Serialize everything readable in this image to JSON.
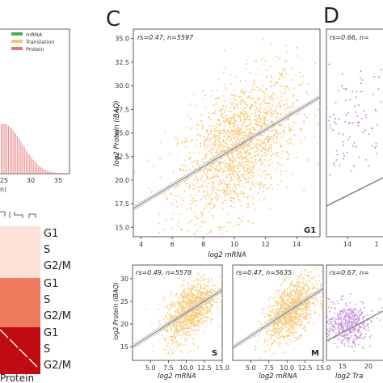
{
  "colors": {
    "mrna": "#4caf50",
    "translation": "#f6c26b",
    "protein": "#e57373",
    "scatter_orange": "#f7c97a",
    "scatter_purple": "#c48fd6",
    "fit_line": "#8a8a8a",
    "heat_light": "#fde0d6",
    "heat_mid": "#f07a5e",
    "heat_dark": "#c00c10"
  },
  "panel_b": {
    "legend": [
      "mRNA",
      "Translation",
      "Protein"
    ],
    "x_ticks": [
      "25",
      "30",
      "35"
    ],
    "x_label_fragment": "n)"
  },
  "panel_heatmap": {
    "row_labels": [
      "G1",
      "S",
      "G2/M",
      "G1",
      "S",
      "G2/M",
      "G1",
      "S",
      "G2/M"
    ],
    "x_label": "Protein"
  },
  "panel_c": {
    "letter": "C",
    "main": {
      "stat": "rs=0.47, n=5597",
      "corner": "G1",
      "x_ticks": [
        "4",
        "6",
        "8",
        "10",
        "12",
        "14"
      ],
      "y_ticks": [
        "15.0",
        "17.5",
        "20.0",
        "22.5",
        "25.0",
        "27.5",
        "30.0",
        "32.5",
        "35.0"
      ],
      "xlabel": "log2 mRNA",
      "ylabel": "log2 Protein (iBAQ)"
    },
    "sub_s": {
      "stat": "rs=0.49, n=5578",
      "corner": "S",
      "x_ticks": [
        "5.0",
        "7.5",
        "10.0",
        "12.5",
        "15.0"
      ],
      "y_ticks": [
        "15",
        "20",
        "25",
        "30"
      ],
      "xlabel": "log2 mRNA",
      "ylabel": "log2 Protein (iBAQ)"
    },
    "sub_m": {
      "stat": "rs=0.47, n=5635",
      "corner": "M",
      "x_ticks": [
        "5.0",
        "7.5",
        "10.0",
        "12.5",
        "15.0"
      ],
      "xlabel": "log2 mRNA"
    }
  },
  "panel_d": {
    "letter": "D",
    "top_stat": "rs=0.66, n=",
    "top_x_ticks": [
      "14",
      "1"
    ],
    "bottom_stat": "rs=0.67, n=",
    "bottom_x_ticks": [
      "15",
      "20"
    ],
    "bottom_xlabel": "log2 Tra"
  },
  "chart_data": [
    {
      "type": "scatter",
      "title": "G1",
      "xlabel": "log2 mRNA",
      "ylabel": "log2 Protein (iBAQ)",
      "xlim": [
        3.5,
        15.5
      ],
      "ylim": [
        14,
        36
      ],
      "n": 5597,
      "spearman_rs": 0.47,
      "point_cloud": {
        "center": [
          10.2,
          23.4
        ],
        "sd": [
          1.9,
          3.4
        ]
      },
      "fit_line": {
        "x": [
          3.5,
          15.5
        ],
        "y": [
          17.0,
          28.8
        ]
      }
    },
    {
      "type": "scatter",
      "title": "S",
      "xlabel": "log2 mRNA",
      "ylabel": "log2 Protein (iBAQ)",
      "xlim": [
        2.5,
        15
      ],
      "ylim": [
        12,
        33
      ],
      "n": 5578,
      "spearman_rs": 0.49,
      "point_cloud": {
        "center": [
          10.5,
          23.0
        ],
        "sd": [
          1.8,
          3.0
        ]
      },
      "fit_line": {
        "x": [
          2.5,
          15
        ],
        "y": [
          15.0,
          27.5
        ]
      }
    },
    {
      "type": "scatter",
      "title": "M",
      "xlabel": "log2 mRNA",
      "xlim": [
        2.5,
        15
      ],
      "ylim": [
        12,
        33
      ],
      "n": 5635,
      "spearman_rs": 0.47,
      "point_cloud": {
        "center": [
          10.6,
          23.0
        ],
        "sd": [
          1.8,
          3.0
        ]
      },
      "fit_line": {
        "x": [
          2.5,
          15
        ],
        "y": [
          14.8,
          27.8
        ]
      }
    }
  ]
}
